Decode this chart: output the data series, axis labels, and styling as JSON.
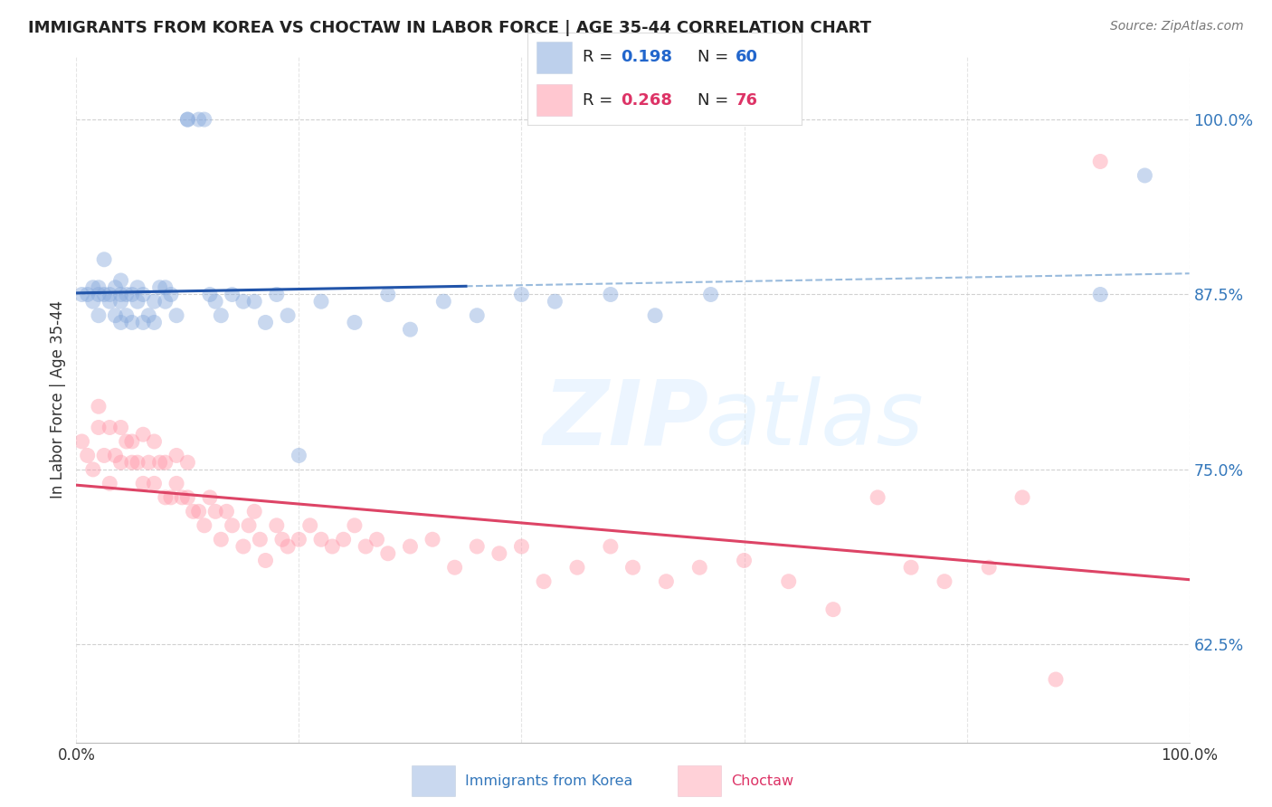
{
  "title": "IMMIGRANTS FROM KOREA VS CHOCTAW IN LABOR FORCE | AGE 35-44 CORRELATION CHART",
  "source": "Source: ZipAtlas.com",
  "ylabel": "In Labor Force | Age 35-44",
  "ytick_labels": [
    "62.5%",
    "75.0%",
    "87.5%",
    "100.0%"
  ],
  "ytick_values": [
    0.625,
    0.75,
    0.875,
    1.0
  ],
  "xlim": [
    0.0,
    1.0
  ],
  "ylim": [
    0.555,
    1.045
  ],
  "blue_color": "#88AADD",
  "pink_color": "#FF99AA",
  "trend_blue_solid": "#2255AA",
  "trend_blue_dash": "#99BBDD",
  "trend_pink": "#DD4466",
  "korea_x": [
    0.005,
    0.01,
    0.015,
    0.015,
    0.02,
    0.02,
    0.02,
    0.025,
    0.025,
    0.03,
    0.03,
    0.035,
    0.035,
    0.04,
    0.04,
    0.04,
    0.04,
    0.045,
    0.045,
    0.05,
    0.05,
    0.055,
    0.055,
    0.06,
    0.06,
    0.065,
    0.07,
    0.07,
    0.075,
    0.08,
    0.08,
    0.085,
    0.09,
    0.1,
    0.1,
    0.11,
    0.115,
    0.12,
    0.125,
    0.13,
    0.14,
    0.15,
    0.16,
    0.17,
    0.18,
    0.19,
    0.2,
    0.22,
    0.25,
    0.28,
    0.3,
    0.33,
    0.36,
    0.4,
    0.43,
    0.48,
    0.52,
    0.57,
    0.92,
    0.96
  ],
  "korea_y": [
    0.875,
    0.875,
    0.87,
    0.88,
    0.86,
    0.875,
    0.88,
    0.875,
    0.9,
    0.87,
    0.875,
    0.86,
    0.88,
    0.855,
    0.87,
    0.875,
    0.885,
    0.86,
    0.875,
    0.855,
    0.875,
    0.87,
    0.88,
    0.855,
    0.875,
    0.86,
    0.855,
    0.87,
    0.88,
    0.87,
    0.88,
    0.875,
    0.86,
    1.0,
    1.0,
    1.0,
    1.0,
    0.875,
    0.87,
    0.86,
    0.875,
    0.87,
    0.87,
    0.855,
    0.875,
    0.86,
    0.76,
    0.87,
    0.855,
    0.875,
    0.85,
    0.87,
    0.86,
    0.875,
    0.87,
    0.875,
    0.86,
    0.875,
    0.875,
    0.96
  ],
  "choctaw_x": [
    0.005,
    0.01,
    0.015,
    0.02,
    0.02,
    0.025,
    0.03,
    0.03,
    0.035,
    0.04,
    0.04,
    0.045,
    0.05,
    0.05,
    0.055,
    0.06,
    0.06,
    0.065,
    0.07,
    0.07,
    0.075,
    0.08,
    0.08,
    0.085,
    0.09,
    0.09,
    0.095,
    0.1,
    0.1,
    0.105,
    0.11,
    0.115,
    0.12,
    0.125,
    0.13,
    0.135,
    0.14,
    0.15,
    0.155,
    0.16,
    0.165,
    0.17,
    0.18,
    0.185,
    0.19,
    0.2,
    0.21,
    0.22,
    0.23,
    0.24,
    0.25,
    0.26,
    0.27,
    0.28,
    0.3,
    0.32,
    0.34,
    0.36,
    0.38,
    0.4,
    0.42,
    0.45,
    0.48,
    0.5,
    0.53,
    0.56,
    0.6,
    0.64,
    0.68,
    0.72,
    0.75,
    0.78,
    0.82,
    0.85,
    0.88,
    0.92
  ],
  "choctaw_y": [
    0.77,
    0.76,
    0.75,
    0.795,
    0.78,
    0.76,
    0.74,
    0.78,
    0.76,
    0.755,
    0.78,
    0.77,
    0.755,
    0.77,
    0.755,
    0.74,
    0.775,
    0.755,
    0.74,
    0.77,
    0.755,
    0.73,
    0.755,
    0.73,
    0.74,
    0.76,
    0.73,
    0.73,
    0.755,
    0.72,
    0.72,
    0.71,
    0.73,
    0.72,
    0.7,
    0.72,
    0.71,
    0.695,
    0.71,
    0.72,
    0.7,
    0.685,
    0.71,
    0.7,
    0.695,
    0.7,
    0.71,
    0.7,
    0.695,
    0.7,
    0.71,
    0.695,
    0.7,
    0.69,
    0.695,
    0.7,
    0.68,
    0.695,
    0.69,
    0.695,
    0.67,
    0.68,
    0.695,
    0.68,
    0.67,
    0.68,
    0.685,
    0.67,
    0.65,
    0.73,
    0.68,
    0.67,
    0.68,
    0.73,
    0.6,
    0.97
  ]
}
